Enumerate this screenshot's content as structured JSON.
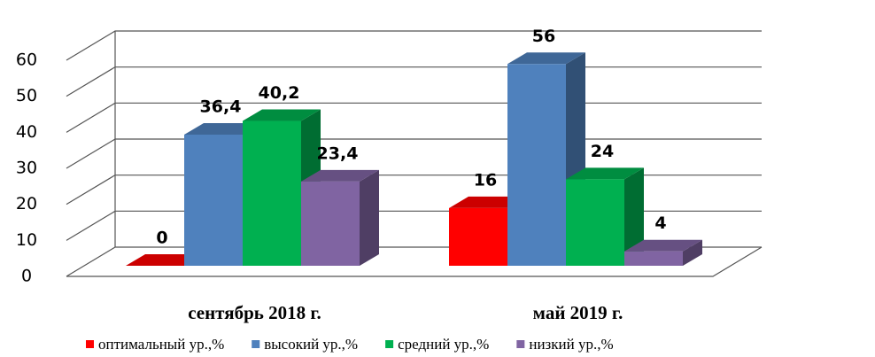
{
  "chart_data": {
    "type": "bar3d",
    "categories": [
      "сентябрь 2018 г.",
      "май 2019 г."
    ],
    "series": [
      {
        "name": "оптимальный ур.,%",
        "color": "#ff0000",
        "values": [
          0,
          16
        ]
      },
      {
        "name": "высокий ур.,%",
        "color": "#4f81bd",
        "values": [
          36.4,
          56
        ],
        "value_labels": [
          "36,4",
          "56"
        ]
      },
      {
        "name": "средний ур.,%",
        "color": "#00b050",
        "values": [
          40.2,
          24
        ],
        "value_labels": [
          "40,2",
          "24"
        ]
      },
      {
        "name": "низкий ур.,%",
        "color": "#8064a2",
        "values": [
          23.4,
          4
        ],
        "value_labels": [
          "23,4",
          "4"
        ]
      }
    ],
    "ylim": [
      0,
      60
    ],
    "yticks": [
      0,
      10,
      20,
      30,
      40,
      50,
      60
    ],
    "grid": true,
    "legend": "bottom"
  }
}
